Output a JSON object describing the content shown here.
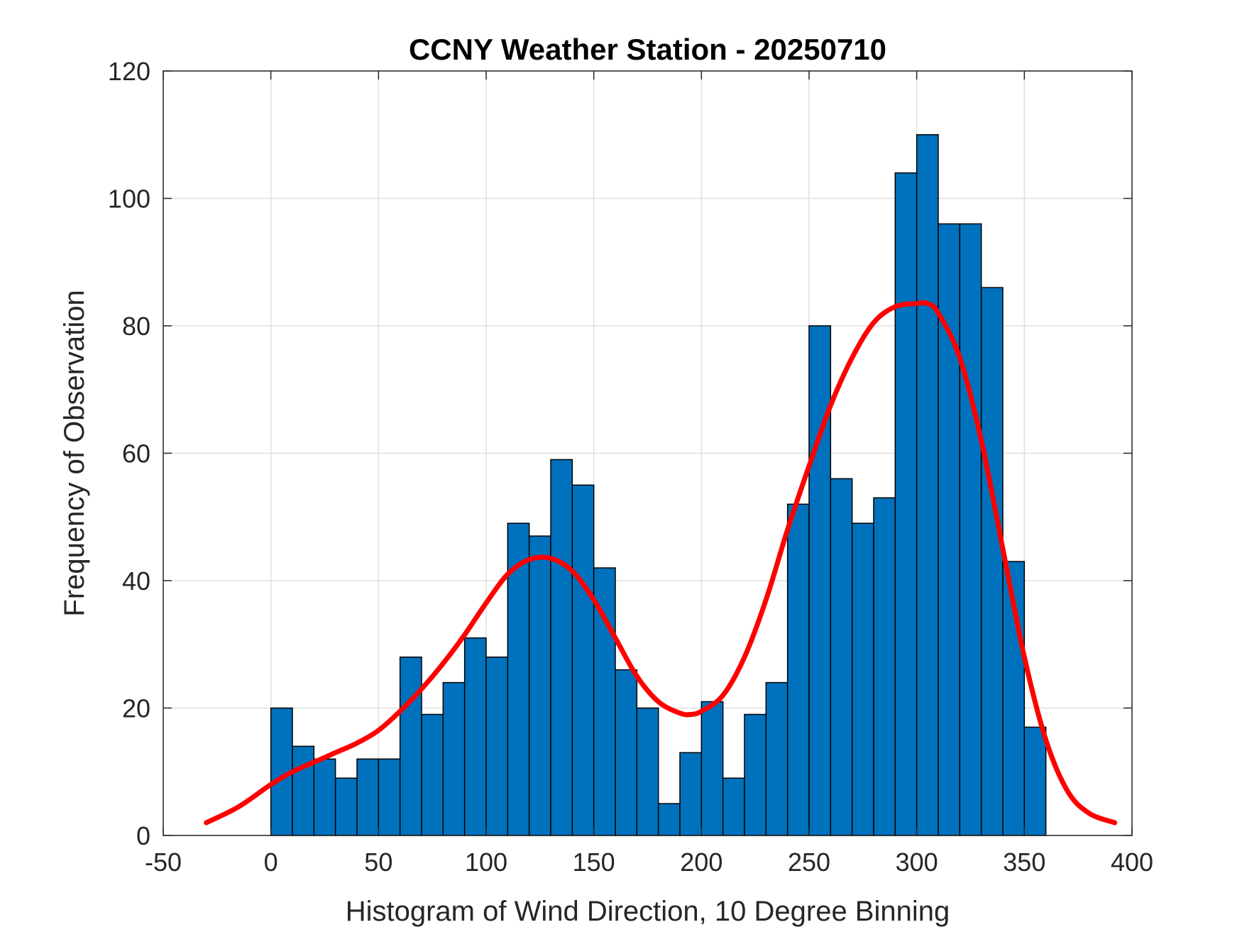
{
  "chart_data": {
    "type": "bar",
    "title": "CCNY Weather Station - 20250710",
    "xlabel": "Histogram of Wind Direction, 10 Degree Binning",
    "ylabel": "Frequency of Observation",
    "xlim": [
      -50,
      400
    ],
    "ylim": [
      0,
      120
    ],
    "xticks": [
      "-50",
      "0",
      "50",
      "100",
      "150",
      "200",
      "250",
      "300",
      "350",
      "400"
    ],
    "yticks": [
      "0",
      "20",
      "40",
      "60",
      "80",
      "100",
      "120"
    ],
    "grid": true,
    "bin_width": 10,
    "bin_edges_start": [
      0,
      10,
      20,
      30,
      40,
      50,
      60,
      70,
      80,
      90,
      100,
      110,
      120,
      130,
      140,
      150,
      160,
      170,
      180,
      190,
      200,
      210,
      220,
      230,
      240,
      250,
      260,
      270,
      280,
      290,
      300,
      310,
      320,
      330,
      340,
      350
    ],
    "values": [
      20,
      14,
      12,
      9,
      12,
      12,
      28,
      19,
      24,
      31,
      28,
      49,
      47,
      59,
      55,
      42,
      26,
      20,
      5,
      13,
      21,
      9,
      19,
      24,
      52,
      80,
      56,
      49,
      53,
      104,
      110,
      96,
      96,
      86,
      43,
      17
    ],
    "bar_color": "#0072bd",
    "fit_curve": {
      "color": "#ff0000",
      "x": [
        -30,
        -15,
        0,
        10,
        20,
        30,
        40,
        50,
        60,
        70,
        80,
        90,
        100,
        110,
        120,
        130,
        140,
        150,
        160,
        170,
        180,
        190,
        195,
        200,
        210,
        220,
        230,
        240,
        250,
        260,
        270,
        280,
        290,
        300,
        305,
        310,
        320,
        330,
        340,
        350,
        360,
        370,
        380,
        392
      ],
      "y": [
        2,
        4.5,
        8,
        10,
        11.5,
        13,
        14.5,
        16.5,
        19.5,
        23,
        27,
        31.5,
        36.5,
        41,
        43.3,
        43.5,
        41.5,
        37,
        31,
        25,
        21,
        19.2,
        19,
        19.5,
        22,
        28,
        37,
        48,
        58,
        67.5,
        75,
        80.5,
        83,
        83.5,
        83.5,
        82,
        75,
        62,
        45,
        28,
        15,
        7,
        3.5,
        2
      ]
    }
  }
}
